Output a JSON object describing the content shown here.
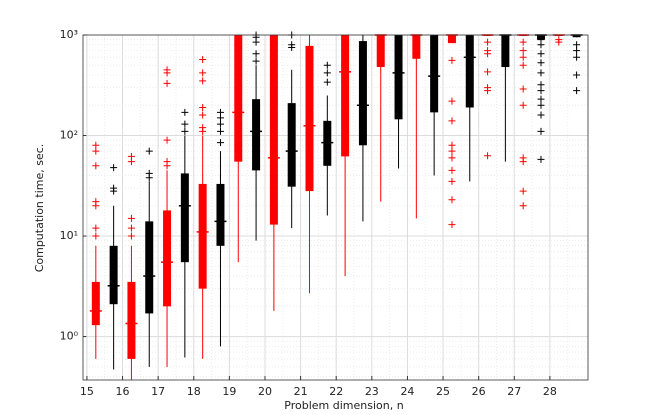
{
  "chart_data": {
    "type": "box",
    "xlabel": "Problem dimension, n",
    "ylabel": "Computation time, sec.",
    "log_y": true,
    "grid": true,
    "xlim": [
      14.89,
      29.07
    ],
    "xticks": [
      15,
      16,
      17,
      18,
      19,
      20,
      21,
      22,
      23,
      24,
      25,
      26,
      27,
      28
    ],
    "ylim": [
      0.37,
      1000
    ],
    "yticks": [
      {
        "value": 1,
        "label": "10⁰"
      },
      {
        "value": 10,
        "label": "10¹"
      },
      {
        "value": 100,
        "label": "10²"
      },
      {
        "value": 1000,
        "label": "10³"
      }
    ],
    "series": [
      {
        "color": "#ff0000",
        "boxes": [
          {
            "x": 15.25,
            "whislo": 0.6,
            "q1": 1.3,
            "med": 1.8,
            "q3": 3.5,
            "whishi": 8,
            "fliers": [
              10,
              12,
              20,
              22,
              50,
              70,
              80
            ]
          },
          {
            "x": 16.25,
            "whislo": 0.37,
            "q1": 0.6,
            "med": 1.35,
            "q3": 3.5,
            "whishi": 8,
            "fliers": [
              10,
              12,
              15,
              55,
              62
            ]
          },
          {
            "x": 17.25,
            "whislo": 0.5,
            "q1": 2,
            "med": 5.5,
            "q3": 18,
            "whishi": 45,
            "fliers": [
              50,
              55,
              90,
              330,
              420,
              450
            ]
          },
          {
            "x": 18.25,
            "whislo": 0.6,
            "q1": 3,
            "med": 11,
            "q3": 33,
            "whishi": 100,
            "fliers": [
              110,
              120,
              160,
              190,
              350,
              420,
              570
            ]
          },
          {
            "x": 19.25,
            "whislo": 5.5,
            "q1": 55,
            "med": 170,
            "q3": 1000,
            "whishi": 1000,
            "fliers": []
          },
          {
            "x": 20.25,
            "whislo": 1.8,
            "q1": 13,
            "med": 60,
            "q3": 1000,
            "whishi": 1000,
            "fliers": []
          },
          {
            "x": 21.25,
            "whislo": 2.7,
            "q1": 28,
            "med": 125,
            "q3": 780,
            "whishi": 1000,
            "fliers": []
          },
          {
            "x": 22.25,
            "whislo": 4,
            "q1": 62,
            "med": 430,
            "q3": 1000,
            "whishi": 1000,
            "fliers": []
          },
          {
            "x": 23.25,
            "whislo": 22,
            "q1": 480,
            "med": 1000,
            "q3": 1000,
            "whishi": 1000,
            "fliers": []
          },
          {
            "x": 24.25,
            "whislo": 15,
            "q1": 580,
            "med": 1000,
            "q3": 1000,
            "whishi": 1000,
            "fliers": []
          },
          {
            "x": 25.25,
            "whislo": 830,
            "q1": 830,
            "med": 1000,
            "q3": 1000,
            "whishi": 1000,
            "fliers": [
              13,
              23,
              35,
              45,
              60,
              70,
              80,
              140,
              220,
              560
            ]
          },
          {
            "x": 26.25,
            "whislo": 1000,
            "q1": 1000,
            "med": 1000,
            "q3": 1000,
            "whishi": 1000,
            "fliers": [
              63,
              280,
              300,
              430,
              650,
              700,
              850
            ]
          },
          {
            "x": 27.25,
            "whislo": 1000,
            "q1": 1000,
            "med": 1000,
            "q3": 1000,
            "whishi": 1000,
            "fliers": [
              20,
              28,
              55,
              60,
              200,
              290,
              500,
              600,
              700,
              850
            ]
          },
          {
            "x": 28.25,
            "whislo": 1000,
            "q1": 1000,
            "med": 1000,
            "q3": 1000,
            "whishi": 1000,
            "fliers": [
              850,
              900
            ]
          }
        ]
      },
      {
        "color": "#000000",
        "boxes": [
          {
            "x": 15.75,
            "whislo": 0.47,
            "q1": 2.1,
            "med": 3.2,
            "q3": 8,
            "whishi": 20,
            "fliers": [
              28,
              30,
              48
            ]
          },
          {
            "x": 16.75,
            "whislo": 0.5,
            "q1": 1.7,
            "med": 4,
            "q3": 14,
            "whishi": 35,
            "fliers": [
              38,
              42,
              70
            ]
          },
          {
            "x": 17.75,
            "whislo": 0.62,
            "q1": 5.5,
            "med": 20,
            "q3": 42,
            "whishi": 100,
            "fliers": [
              110,
              130,
              170
            ]
          },
          {
            "x": 18.75,
            "whislo": 0.8,
            "q1": 8,
            "med": 14,
            "q3": 33,
            "whishi": 70,
            "fliers": [
              85,
              110,
              130,
              150,
              170
            ]
          },
          {
            "x": 19.75,
            "whislo": 9,
            "q1": 45,
            "med": 110,
            "q3": 230,
            "whishi": 500,
            "fliers": [
              550,
              650,
              850,
              950,
              1000
            ]
          },
          {
            "x": 20.75,
            "whislo": 12,
            "q1": 31,
            "med": 70,
            "q3": 210,
            "whishi": 450,
            "fliers": [
              750,
              800,
              1000
            ]
          },
          {
            "x": 21.75,
            "whislo": 16,
            "q1": 50,
            "med": 85,
            "q3": 140,
            "whishi": 250,
            "fliers": [
              340,
              420,
              500
            ]
          },
          {
            "x": 22.75,
            "whislo": 14,
            "q1": 80,
            "med": 200,
            "q3": 870,
            "whishi": 1000,
            "fliers": []
          },
          {
            "x": 23.75,
            "whislo": 47,
            "q1": 145,
            "med": 420,
            "q3": 1000,
            "whishi": 1000,
            "fliers": []
          },
          {
            "x": 24.75,
            "whislo": 40,
            "q1": 170,
            "med": 390,
            "q3": 1000,
            "whishi": 1000,
            "fliers": []
          },
          {
            "x": 25.75,
            "whislo": 35,
            "q1": 190,
            "med": 600,
            "q3": 1000,
            "whishi": 1000,
            "fliers": []
          },
          {
            "x": 26.75,
            "whislo": 55,
            "q1": 480,
            "med": 1000,
            "q3": 1000,
            "whishi": 1000,
            "fliers": []
          },
          {
            "x": 27.75,
            "whislo": 900,
            "q1": 900,
            "med": 1000,
            "q3": 1000,
            "whishi": 1000,
            "fliers": [
              58,
              110,
              160,
              200,
              230,
              280,
              320,
              420,
              530,
              650,
              800,
              900
            ]
          },
          {
            "x": 28.75,
            "whislo": 950,
            "q1": 950,
            "med": 1000,
            "q3": 1000,
            "whishi": 1000,
            "fliers": [
              280,
              400,
              600,
              700,
              800
            ]
          }
        ]
      }
    ]
  }
}
